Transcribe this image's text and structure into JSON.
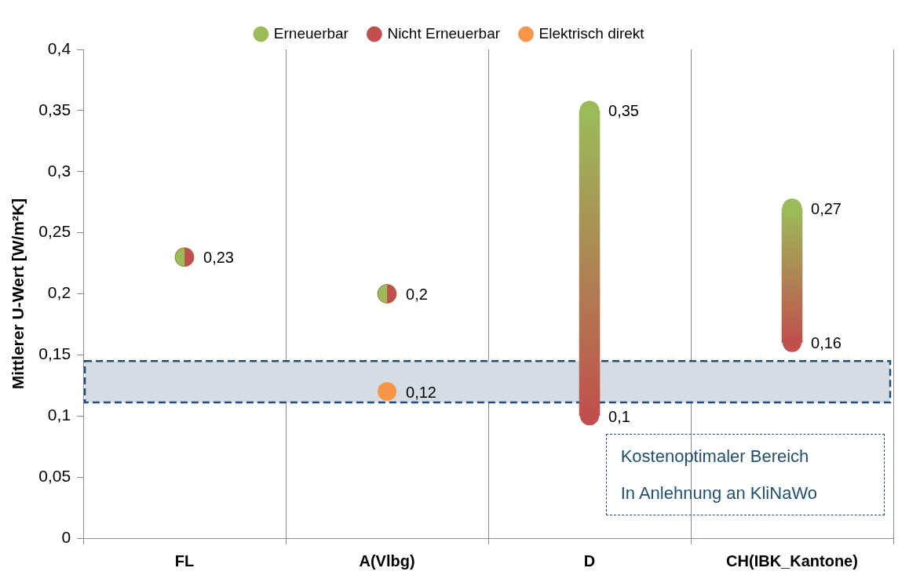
{
  "chart_data": {
    "type": "scatter",
    "ylabel": "Mittlerer U-Wert [W/m²K]",
    "categories": [
      "FL",
      "A(Vlbg)",
      "D",
      "CH(IBK_Kantone)"
    ],
    "series": [
      {
        "type": "bar",
        "base": [
          null,
          null,
          0.1,
          0.16
        ],
        "values": [
          null,
          null,
          0.25,
          0.11
        ]
      },
      {
        "name": "Erneuerbar",
        "color": "#9bbb59",
        "values": [
          0.23,
          0.2,
          0.35,
          0.27
        ],
        "value_labels": [
          "0,23",
          "0,2",
          "0,35",
          "0,27"
        ]
      },
      {
        "name": "Nicht Erneuerbar",
        "color": "#c0504d",
        "values": [
          0.23,
          0.2,
          0.1,
          0.16
        ],
        "value_labels": [
          null,
          null,
          "0,1",
          "0,16"
        ]
      },
      {
        "name": "Elektrisch direkt",
        "color": "#f79646",
        "values": [
          null,
          0.12,
          null,
          null
        ],
        "value_labels": [
          null,
          "0,12",
          null,
          null
        ]
      }
    ],
    "ylim": [
      0,
      0.4
    ],
    "yticks": [
      0,
      {
        "value": 0.05,
        "label": "0,05"
      },
      {
        "value": 0.1,
        "label": "0,1"
      },
      {
        "value": 0.15,
        "label": "0,15"
      },
      {
        "value": 0.2,
        "label": "0,2"
      },
      {
        "value": 0.25,
        "label": "0,25"
      },
      {
        "value": 0.3,
        "label": "0,3"
      },
      {
        "value": 0.35,
        "label": "0,35"
      },
      {
        "value": 0.4,
        "label": "0,4"
      }
    ],
    "grid": "x",
    "legend": "top",
    "marker": "circle",
    "bands": [
      {
        "axis": "y",
        "from": 0.111,
        "to": 0.145,
        "label": "Kostenoptimaler Bereich\nIn Anlehnung an KliNaWo",
        "color": "#d6dce4"
      }
    ]
  }
}
